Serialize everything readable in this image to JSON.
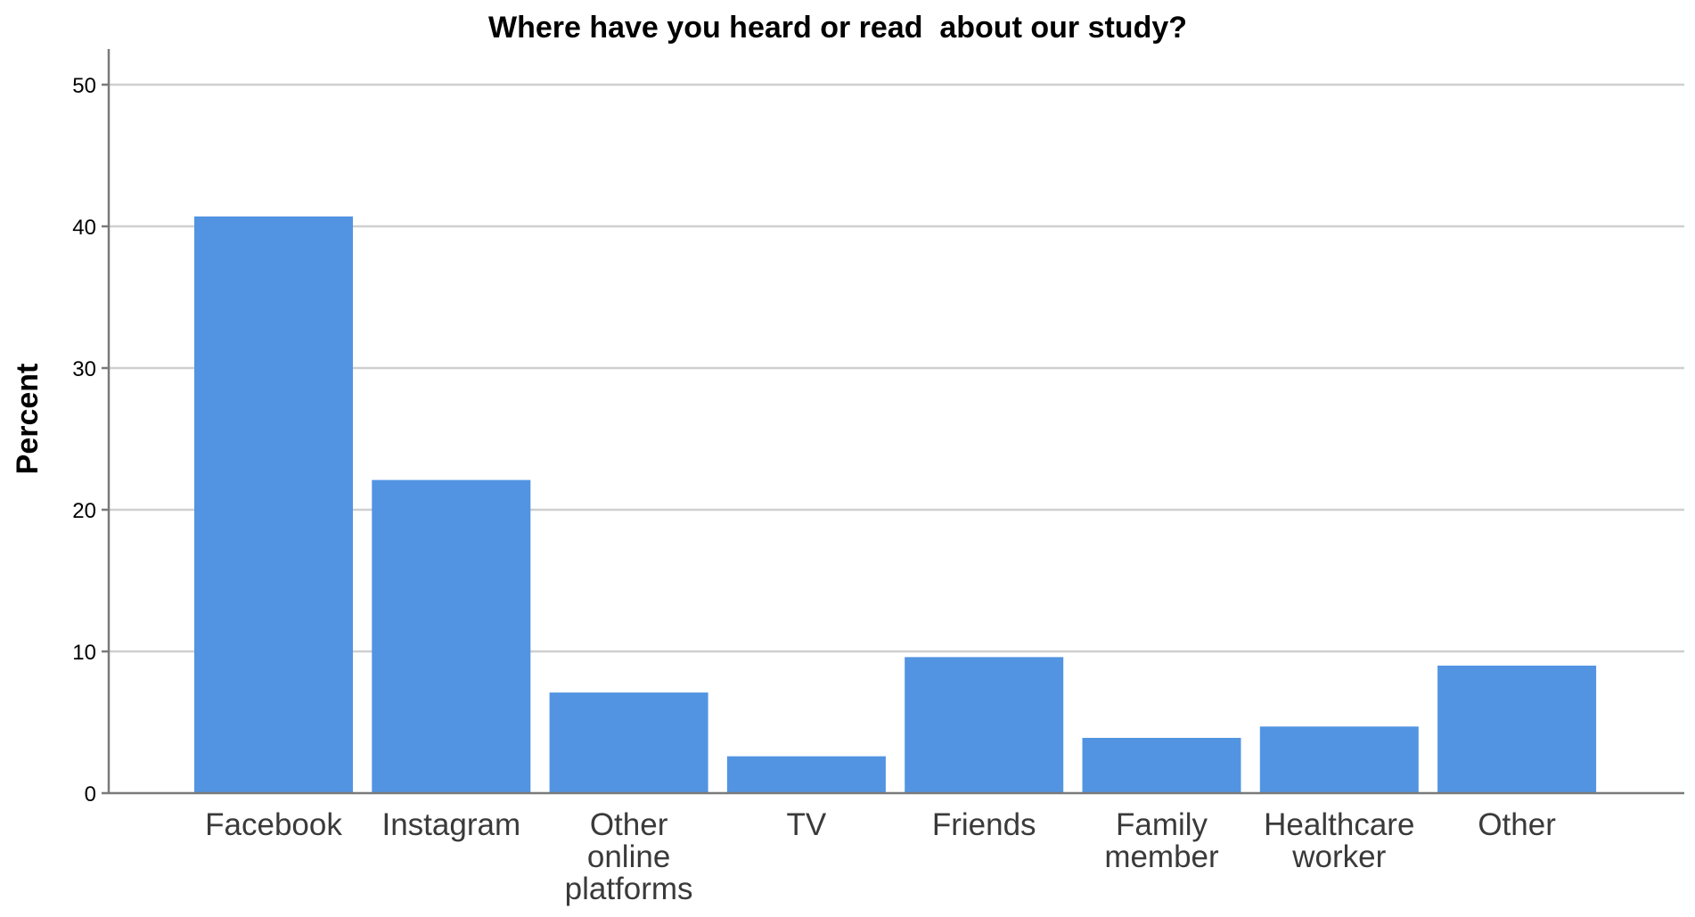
{
  "chart_data": {
    "type": "bar",
    "title": "Where have you heard or read  about our study?",
    "xlabel": "",
    "ylabel": "Percent",
    "ylim": [
      0,
      52
    ],
    "yticks": [
      0,
      10,
      20,
      30,
      40,
      50
    ],
    "grid": true,
    "categories": [
      [
        "Facebook"
      ],
      [
        "Instagram"
      ],
      [
        "Other",
        "online",
        "platforms"
      ],
      [
        "TV"
      ],
      [
        "Friends"
      ],
      [
        "Family",
        "member"
      ],
      [
        "Healthcare",
        "worker"
      ],
      [
        "Other"
      ]
    ],
    "values": [
      40.7,
      22.1,
      7.1,
      2.6,
      9.6,
      3.9,
      4.7,
      9.0
    ],
    "bar_color": "#5294e2",
    "grid_color": "#cfcfcf",
    "axis_color": "#7a7a7a"
  }
}
